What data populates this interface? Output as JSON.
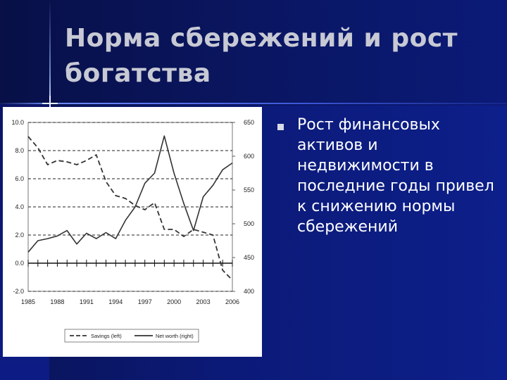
{
  "slide": {
    "title": "Норма сбережений и рост богатства",
    "bullet": "Рост финансовых активов и недвижимости в последние годы привел к снижению нормы сбережений"
  },
  "colors": {
    "background": "#0b1a78",
    "title": "#c7c9d4",
    "text": "#ffffff",
    "chart_bg": "#ffffff",
    "series": "#333333"
  },
  "chart_data": {
    "type": "line",
    "x_ticks": [
      1985,
      1988,
      1991,
      1994,
      1997,
      2000,
      2003,
      2006
    ],
    "x_range": [
      1985,
      2006
    ],
    "y_left": {
      "range": [
        -2.0,
        10.0
      ],
      "ticks": [
        "10.0",
        "8.0",
        "6.0",
        "4.0",
        "2.0",
        "0.0",
        "-2.0"
      ]
    },
    "y_right": {
      "range": [
        400,
        650
      ],
      "ticks": [
        "650",
        "600",
        "550",
        "500",
        "450",
        "400"
      ]
    },
    "grid": "horizontal dashed",
    "legend_position": "bottom",
    "series": [
      {
        "name": "Savings (left)",
        "axis": "left",
        "style": "dashed",
        "x": [
          1985,
          1986,
          1987,
          1988,
          1989,
          1990,
          1991,
          1992,
          1993,
          1994,
          1995,
          1996,
          1997,
          1998,
          1999,
          2000,
          2001,
          2002,
          2003,
          2004,
          2005,
          2006
        ],
        "y": [
          9.0,
          8.2,
          7.0,
          7.3,
          7.2,
          7.0,
          7.3,
          7.7,
          5.8,
          4.8,
          4.6,
          4.1,
          3.8,
          4.3,
          2.4,
          2.4,
          1.9,
          2.4,
          2.2,
          2.0,
          -0.5,
          -1.2
        ]
      },
      {
        "name": "Net worth (right)",
        "axis": "right",
        "style": "solid",
        "x": [
          1985,
          1986,
          1987,
          1988,
          1989,
          1990,
          1991,
          1992,
          1993,
          1994,
          1995,
          1996,
          1997,
          1998,
          1999,
          2000,
          2001,
          2002,
          2003,
          2004,
          2005,
          2006
        ],
        "y": [
          458,
          475,
          478,
          482,
          490,
          470,
          486,
          478,
          487,
          478,
          505,
          525,
          560,
          575,
          630,
          575,
          530,
          490,
          540,
          557,
          580,
          590
        ]
      }
    ]
  }
}
